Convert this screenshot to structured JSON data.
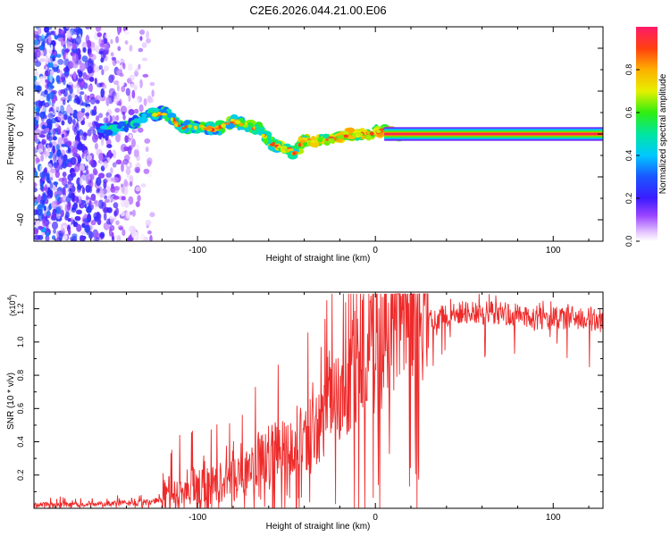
{
  "title": "C2E6.2026.044.21.00.E06",
  "chart_data": [
    {
      "type": "heatmap",
      "xlabel": "Height of straight line (km)",
      "ylabel": "Frequency (Hz)",
      "xlim": [
        -192,
        128
      ],
      "ylim": [
        -50,
        50
      ],
      "xticks": [
        -100,
        0,
        100
      ],
      "xtick_labels": [
        "-100",
        "0",
        "100"
      ],
      "yticks": [
        -40,
        -20,
        0,
        20,
        40
      ],
      "ytick_labels": [
        "-40",
        "-20",
        "0",
        "20",
        "40"
      ],
      "noise_region_x": [
        -192,
        -122
      ],
      "ridge": {
        "x": [
          -155,
          -140,
          -128,
          -118,
          -110,
          -100,
          -90,
          -80,
          -72,
          -65,
          -58,
          -50,
          -45,
          -41,
          -35,
          -25,
          -15,
          -5,
          0,
          5,
          15
        ],
        "y": [
          2,
          3,
          9,
          10,
          3,
          3,
          2,
          6,
          4,
          2,
          -5,
          -7,
          -9,
          -3,
          -3,
          -2,
          0,
          0,
          1,
          2,
          0
        ]
      },
      "steady_line": {
        "x_start": 5,
        "x_end": 128,
        "y": 0
      },
      "colorbar": {
        "label": "Normalized spectral amplitude",
        "range": [
          0,
          1
        ],
        "ticks": [
          0.0,
          0.2,
          0.4,
          0.6,
          0.8
        ],
        "tick_labels": [
          "0.0",
          "0.2",
          "0.4",
          "0.6",
          "0.8"
        ]
      }
    },
    {
      "type": "line",
      "xlabel": "Height of straight line (km)",
      "ylabel": "SNR (10 * v/v)",
      "multiplier_label": "(x10",
      "multiplier_exp": "4",
      "xlim": [
        -192,
        128
      ],
      "ylim": [
        0,
        1.3
      ],
      "xticks": [
        -100,
        0,
        100
      ],
      "xtick_labels": [
        "-100",
        "0",
        "100"
      ],
      "yticks": [
        0.2,
        0.4,
        0.6,
        0.8,
        1.0,
        1.2
      ],
      "ytick_labels": [
        "0.2",
        "0.4",
        "0.6",
        "0.8",
        "1.0",
        "1.2"
      ],
      "series": [
        {
          "name": "SNR",
          "color": "#ee2a2a",
          "x": [
            -192,
            -170,
            -150,
            -130,
            -120,
            -110,
            -100,
            -90,
            -80,
            -70,
            -60,
            -50,
            -40,
            -30,
            -20,
            -10,
            0,
            10,
            20,
            30,
            40,
            50,
            60,
            70,
            80,
            90,
            100,
            110,
            120,
            128
          ],
          "y": [
            0.02,
            0.02,
            0.025,
            0.03,
            0.05,
            0.08,
            0.1,
            0.12,
            0.15,
            0.22,
            0.28,
            0.32,
            0.38,
            0.48,
            0.6,
            0.8,
            0.95,
            1.05,
            1.1,
            1.15,
            1.18,
            1.2,
            1.19,
            1.2,
            1.18,
            1.17,
            1.16,
            1.17,
            1.16,
            1.15
          ]
        }
      ]
    }
  ]
}
